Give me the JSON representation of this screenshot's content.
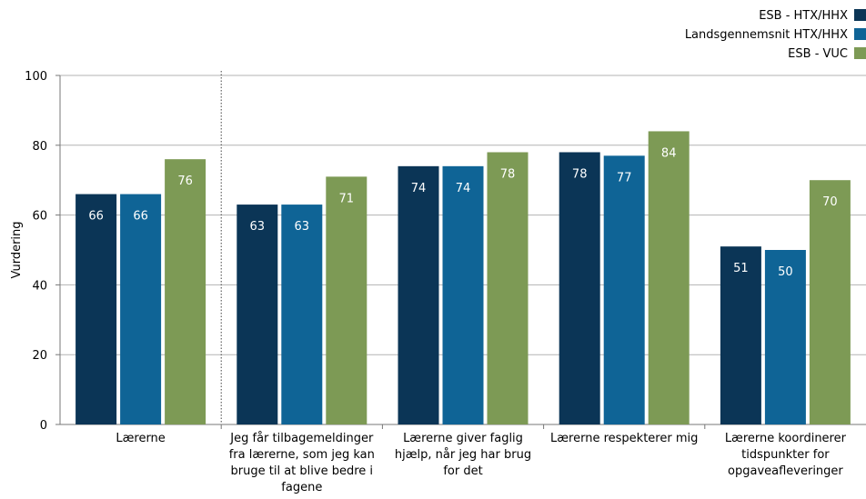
{
  "chart_data": {
    "type": "bar",
    "ylabel": "Vurdering",
    "ylim": [
      0,
      100
    ],
    "yticks": [
      0,
      20,
      40,
      60,
      80,
      100
    ],
    "grid": true,
    "legend_position": "top-right",
    "categories": [
      [
        "Lærerne"
      ],
      [
        "Jeg får tilbagemeldinger",
        "fra lærerne, som jeg kan",
        "bruge til at blive bedre i",
        "fagene"
      ],
      [
        "Lærerne giver faglig",
        "hjælp, når jeg har brug",
        "for det"
      ],
      [
        "Lærerne respekterer mig"
      ],
      [
        "Lærerne koordinerer",
        "tidspunkter for",
        "opgaveafleveringer"
      ]
    ],
    "series": [
      {
        "name": "ESB - HTX/HHX",
        "color": "#0b3556",
        "values": [
          66,
          63,
          74,
          78,
          51
        ],
        "labels": [
          "66",
          "63",
          "74",
          "78",
          "51"
        ]
      },
      {
        "name": "Landsgennemsnit HTX/HHX",
        "color": "#0f6496",
        "values": [
          66,
          63,
          74,
          77,
          50
        ],
        "labels": [
          "66",
          "63",
          "74",
          "77",
          "50"
        ]
      },
      {
        "name": "ESB - VUC",
        "color": "#7d9a55",
        "values": [
          76,
          71,
          78,
          84,
          70
        ],
        "labels": [
          "76",
          "71",
          "78",
          "84",
          "70"
        ]
      }
    ]
  }
}
